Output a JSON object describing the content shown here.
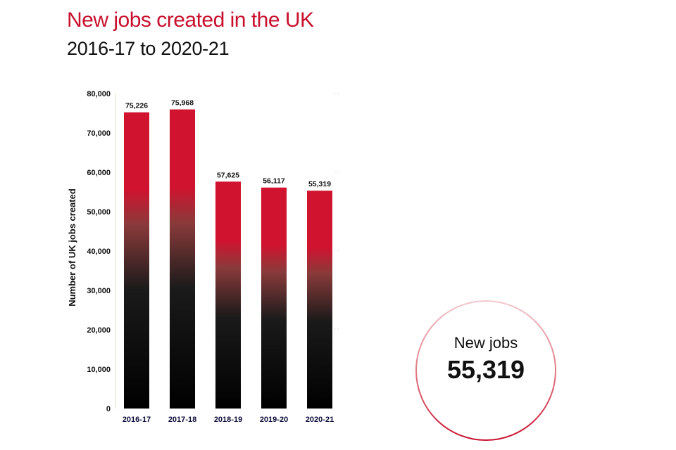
{
  "header": {
    "title": "New jobs created in the UK",
    "subtitle": "2016-17 to 2020-21"
  },
  "callout": {
    "label": "New jobs",
    "value": "55,319"
  },
  "colors": {
    "accent": "#c8102e",
    "bar_top": "#d0132f",
    "bar_bottom": "#000000"
  },
  "chart_data": {
    "type": "bar",
    "categories": [
      "2016-17",
      "2017-18",
      "2018-19",
      "2019-20",
      "2020-21"
    ],
    "values": [
      75226,
      75968,
      57625,
      56117,
      55319
    ],
    "data_labels": [
      "75,226",
      "75,968",
      "57,625",
      "56,117",
      "55,319"
    ],
    "title": "",
    "xlabel": "",
    "ylabel": "Number of UK jobs created",
    "ylim": [
      0,
      80000
    ],
    "yticks": [
      0,
      10000,
      20000,
      30000,
      40000,
      50000,
      60000,
      70000,
      80000
    ],
    "ytick_labels": [
      "0",
      "10,000",
      "20,000",
      "30,000",
      "40,000",
      "50,000",
      "60,000",
      "70,000",
      "80,000"
    ],
    "grid": false,
    "legend": "none"
  }
}
